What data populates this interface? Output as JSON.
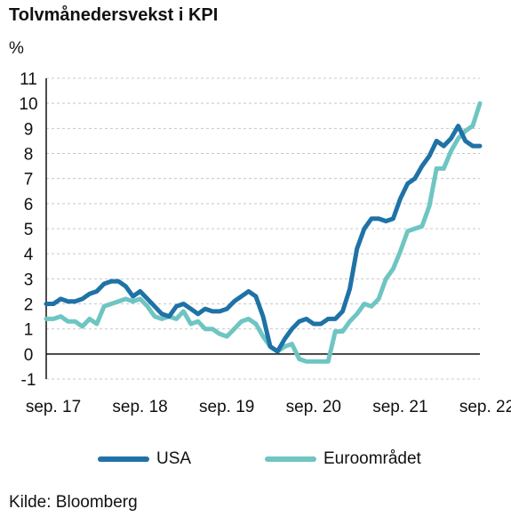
{
  "title": "Tolvmånedersvekst i KPI",
  "source": "Kilde: Bloomberg",
  "colors": {
    "usa": "#1f72a6",
    "euro": "#6ec5c2",
    "grid": "#c8c8c8",
    "axis": "#111111"
  },
  "chart_data": {
    "type": "line",
    "title": "Tolvmånedersvekst i KPI",
    "ylabel": "%",
    "xlabel": "",
    "ylim": [
      -1,
      11
    ],
    "yticks": [
      -1,
      0,
      1,
      2,
      3,
      4,
      5,
      6,
      7,
      8,
      9,
      10,
      11
    ],
    "xlim": [
      "2017-09",
      "2022-09"
    ],
    "xticks": [
      {
        "label": "sep. 17",
        "date": "2017-09"
      },
      {
        "label": "sep. 18",
        "date": "2018-09"
      },
      {
        "label": "sep. 19",
        "date": "2019-09"
      },
      {
        "label": "sep. 20",
        "date": "2020-09"
      },
      {
        "label": "sep. 21",
        "date": "2021-09"
      },
      {
        "label": "sep. 22",
        "date": "2022-09"
      }
    ],
    "grid": true,
    "legend": "bottom",
    "series": [
      {
        "name": "USA",
        "color_key": "usa",
        "points": [
          [
            "2017-09",
            2.0
          ],
          [
            "2017-10",
            2.0
          ],
          [
            "2017-11",
            2.2
          ],
          [
            "2017-12",
            2.1
          ],
          [
            "2018-01",
            2.1
          ],
          [
            "2018-02",
            2.2
          ],
          [
            "2018-03",
            2.4
          ],
          [
            "2018-04",
            2.5
          ],
          [
            "2018-05",
            2.8
          ],
          [
            "2018-06",
            2.9
          ],
          [
            "2018-07",
            2.9
          ],
          [
            "2018-08",
            2.7
          ],
          [
            "2018-09",
            2.3
          ],
          [
            "2018-10",
            2.5
          ],
          [
            "2018-11",
            2.2
          ],
          [
            "2018-12",
            1.9
          ],
          [
            "2019-01",
            1.6
          ],
          [
            "2019-02",
            1.5
          ],
          [
            "2019-03",
            1.9
          ],
          [
            "2019-04",
            2.0
          ],
          [
            "2019-05",
            1.8
          ],
          [
            "2019-06",
            1.6
          ],
          [
            "2019-07",
            1.8
          ],
          [
            "2019-08",
            1.7
          ],
          [
            "2019-09",
            1.7
          ],
          [
            "2019-10",
            1.8
          ],
          [
            "2019-11",
            2.1
          ],
          [
            "2019-12",
            2.3
          ],
          [
            "2020-01",
            2.5
          ],
          [
            "2020-02",
            2.3
          ],
          [
            "2020-03",
            1.5
          ],
          [
            "2020-04",
            0.3
          ],
          [
            "2020-05",
            0.1
          ],
          [
            "2020-06",
            0.6
          ],
          [
            "2020-07",
            1.0
          ],
          [
            "2020-08",
            1.3
          ],
          [
            "2020-09",
            1.4
          ],
          [
            "2020-10",
            1.2
          ],
          [
            "2020-11",
            1.2
          ],
          [
            "2020-12",
            1.4
          ],
          [
            "2021-01",
            1.4
          ],
          [
            "2021-02",
            1.7
          ],
          [
            "2021-03",
            2.6
          ],
          [
            "2021-04",
            4.2
          ],
          [
            "2021-05",
            5.0
          ],
          [
            "2021-06",
            5.4
          ],
          [
            "2021-07",
            5.4
          ],
          [
            "2021-08",
            5.3
          ],
          [
            "2021-09",
            5.4
          ],
          [
            "2021-10",
            6.2
          ],
          [
            "2021-11",
            6.8
          ],
          [
            "2021-12",
            7.0
          ],
          [
            "2022-01",
            7.5
          ],
          [
            "2022-02",
            7.9
          ],
          [
            "2022-03",
            8.5
          ],
          [
            "2022-04",
            8.3
          ],
          [
            "2022-05",
            8.6
          ],
          [
            "2022-06",
            9.1
          ],
          [
            "2022-07",
            8.5
          ],
          [
            "2022-08",
            8.3
          ],
          [
            "2022-09",
            8.3
          ]
        ]
      },
      {
        "name": "Euroområdet",
        "color_key": "euro",
        "points": [
          [
            "2017-09",
            1.4
          ],
          [
            "2017-10",
            1.4
          ],
          [
            "2017-11",
            1.5
          ],
          [
            "2017-12",
            1.3
          ],
          [
            "2018-01",
            1.3
          ],
          [
            "2018-02",
            1.1
          ],
          [
            "2018-03",
            1.4
          ],
          [
            "2018-04",
            1.2
          ],
          [
            "2018-05",
            1.9
          ],
          [
            "2018-06",
            2.0
          ],
          [
            "2018-07",
            2.1
          ],
          [
            "2018-08",
            2.2
          ],
          [
            "2018-09",
            2.1
          ],
          [
            "2018-10",
            2.2
          ],
          [
            "2018-11",
            1.9
          ],
          [
            "2018-12",
            1.5
          ],
          [
            "2019-01",
            1.4
          ],
          [
            "2019-02",
            1.5
          ],
          [
            "2019-03",
            1.4
          ],
          [
            "2019-04",
            1.7
          ],
          [
            "2019-05",
            1.2
          ],
          [
            "2019-06",
            1.3
          ],
          [
            "2019-07",
            1.0
          ],
          [
            "2019-08",
            1.0
          ],
          [
            "2019-09",
            0.8
          ],
          [
            "2019-10",
            0.7
          ],
          [
            "2019-11",
            1.0
          ],
          [
            "2019-12",
            1.3
          ],
          [
            "2020-01",
            1.4
          ],
          [
            "2020-02",
            1.2
          ],
          [
            "2020-03",
            0.7
          ],
          [
            "2020-04",
            0.3
          ],
          [
            "2020-05",
            0.1
          ],
          [
            "2020-06",
            0.3
          ],
          [
            "2020-07",
            0.4
          ],
          [
            "2020-08",
            -0.2
          ],
          [
            "2020-09",
            -0.3
          ],
          [
            "2020-10",
            -0.3
          ],
          [
            "2020-11",
            -0.3
          ],
          [
            "2020-12",
            -0.3
          ],
          [
            "2021-01",
            0.9
          ],
          [
            "2021-02",
            0.9
          ],
          [
            "2021-03",
            1.3
          ],
          [
            "2021-04",
            1.6
          ],
          [
            "2021-05",
            2.0
          ],
          [
            "2021-06",
            1.9
          ],
          [
            "2021-07",
            2.2
          ],
          [
            "2021-08",
            3.0
          ],
          [
            "2021-09",
            3.4
          ],
          [
            "2021-10",
            4.1
          ],
          [
            "2021-11",
            4.9
          ],
          [
            "2021-12",
            5.0
          ],
          [
            "2022-01",
            5.1
          ],
          [
            "2022-02",
            5.9
          ],
          [
            "2022-03",
            7.4
          ],
          [
            "2022-04",
            7.4
          ],
          [
            "2022-05",
            8.1
          ],
          [
            "2022-06",
            8.6
          ],
          [
            "2022-07",
            8.9
          ],
          [
            "2022-08",
            9.1
          ],
          [
            "2022-09",
            10.0
          ]
        ]
      }
    ]
  }
}
